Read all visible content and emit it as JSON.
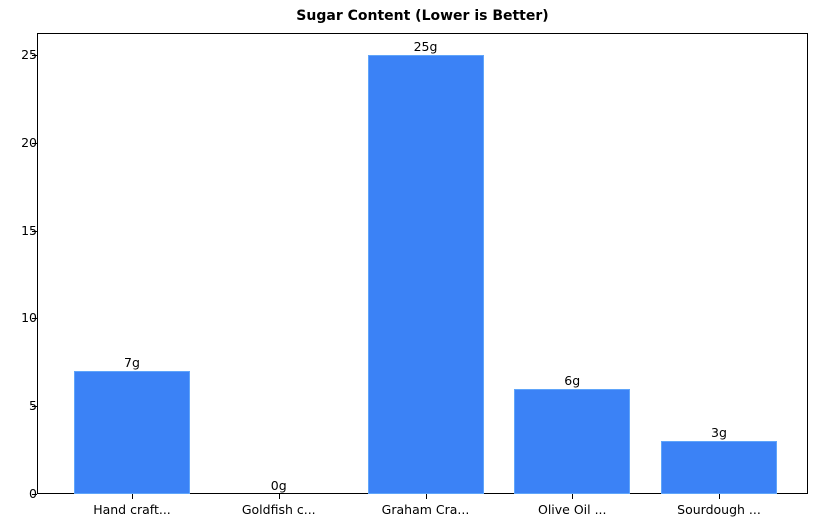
{
  "chart_data": {
    "type": "bar",
    "title": "Sugar Content (Lower is Better)",
    "xlabel": "",
    "ylabel": "",
    "categories": [
      "Hand craft...",
      "Goldfish c...",
      "Graham Cra...",
      "Olive Oil ...",
      "Sourdough ..."
    ],
    "values": [
      7,
      0,
      25,
      6,
      3
    ],
    "value_labels": [
      "7g",
      "0g",
      "25g",
      "6g",
      "3g"
    ],
    "ylim": [
      0,
      26.25
    ],
    "yticks": [
      0,
      5,
      10,
      15,
      20,
      25
    ],
    "grid": false,
    "legend": null,
    "bar_color": "#3b82f6"
  }
}
